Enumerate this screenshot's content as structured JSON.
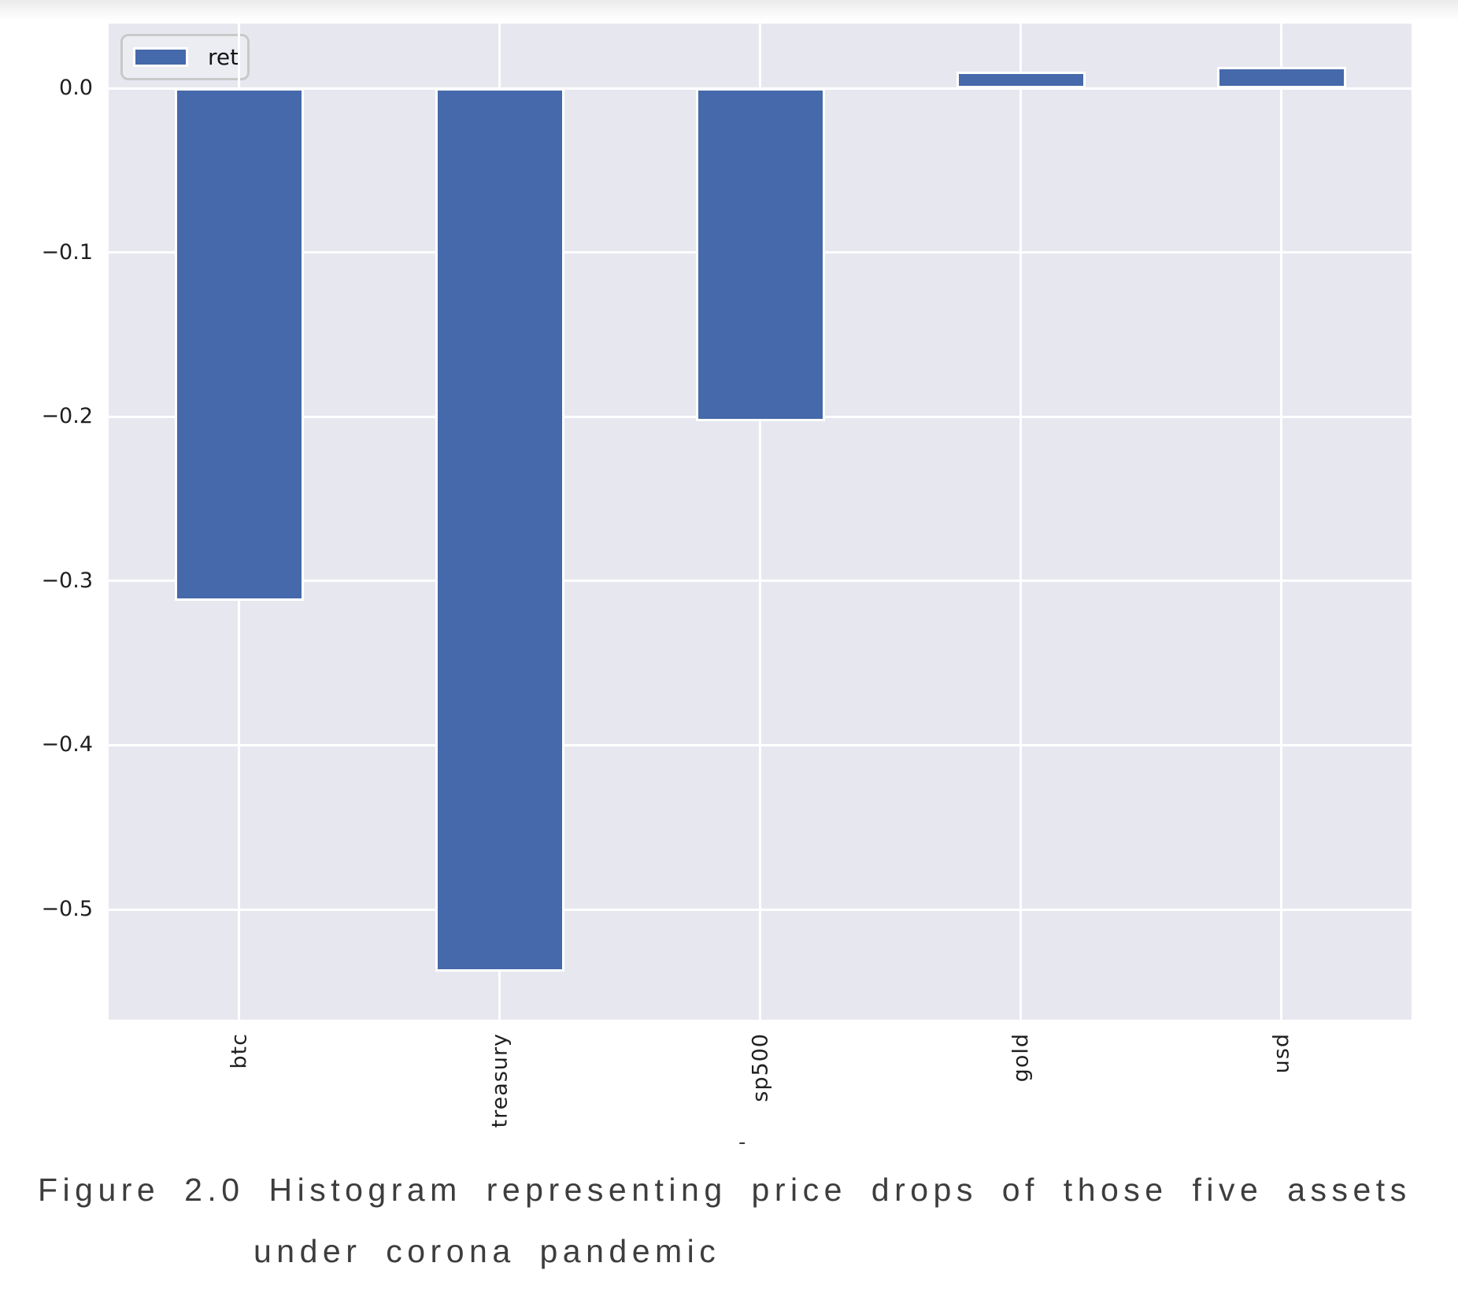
{
  "chart_data": {
    "type": "bar",
    "title": "",
    "xlabel": "",
    "ylabel": "",
    "categories": [
      "btc",
      "treasury",
      "sp500",
      "gold",
      "usd"
    ],
    "series": [
      {
        "name": "ret",
        "values": [
          -0.312,
          -0.538,
          -0.203,
          0.01,
          0.013
        ]
      }
    ],
    "ylim": [
      -0.567,
      0.039
    ],
    "yticks": [
      {
        "value": 0.0,
        "label": "0.0"
      },
      {
        "value": -0.1,
        "label": "−0.1"
      },
      {
        "value": -0.2,
        "label": "−0.2"
      },
      {
        "value": -0.3,
        "label": "−0.3"
      },
      {
        "value": -0.4,
        "label": "−0.4"
      },
      {
        "value": -0.5,
        "label": "−0.5"
      }
    ],
    "grid": true,
    "legend": {
      "position": "upper-left",
      "entries": [
        "ret"
      ]
    },
    "colors": {
      "bar": "#4569aa",
      "plot_bg": "#e7e7f0",
      "grid": "#ffffff",
      "tick_text": "#1f1f1f"
    }
  },
  "artifact": {
    "clipped_label": "-"
  },
  "caption": {
    "line1": "Figure 2.0 Histogram representing price drops of those five assets",
    "line2": "under corona pandemic"
  }
}
